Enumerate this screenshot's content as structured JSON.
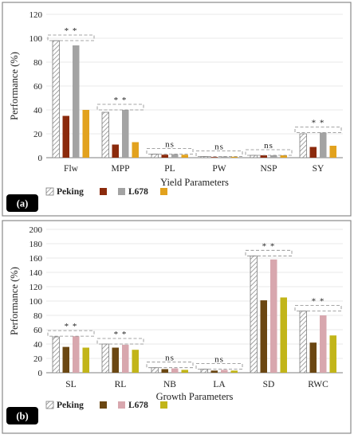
{
  "colors": {
    "hatch_stroke": "#7d7d7d",
    "a_dark": "#8b2a0c",
    "a_gray": "#a3a3a3",
    "a_gold": "#e2a21e",
    "b_brown": "#6b4712",
    "b_pink": "#d8a7ae",
    "b_olive": "#c2b519",
    "bar_outline": "#333333",
    "tag_bg": "#000000"
  },
  "chart_data": [
    {
      "panel_label": "(a)",
      "type": "bar",
      "ylabel": "Performance (%)",
      "xlabel": "Yield Parameters",
      "ylim": [
        0,
        120
      ],
      "yticks": [
        "0",
        "20",
        "40",
        "60",
        "80",
        "100",
        "120"
      ],
      "grid": true,
      "categories": [
        "Flw",
        "MPP",
        "PL",
        "PW",
        "NSP",
        "SY"
      ],
      "significance": [
        "* *",
        "* *",
        "ns",
        "ns",
        "ns",
        "* *"
      ],
      "legend": [
        "Peking",
        "",
        "L678",
        ""
      ],
      "series": [
        {
          "name": "Peking",
          "values": [
            98,
            38,
            3,
            1,
            2,
            20
          ]
        },
        {
          "values": [
            35,
            11,
            2.5,
            0.5,
            2,
            9
          ]
        },
        {
          "name": "L678",
          "values": [
            94,
            40,
            3,
            1,
            2,
            21
          ]
        },
        {
          "values": [
            40,
            13,
            2.5,
            0.8,
            2,
            10
          ]
        }
      ]
    },
    {
      "panel_label": "(b)",
      "type": "bar",
      "ylabel": "Performance (%)",
      "xlabel": "Growth Parameters",
      "ylim": [
        0,
        200
      ],
      "yticks": [
        "0",
        "20",
        "40",
        "60",
        "80",
        "100",
        "120",
        "140",
        "160",
        "180",
        "200"
      ],
      "grid": true,
      "categories": [
        "SL",
        "RL",
        "NB",
        "LA",
        "SD",
        "RWC"
      ],
      "significance": [
        "* *",
        "* *",
        "ns",
        "ns",
        "* *",
        "* *"
      ],
      "legend": [
        "Peking",
        "",
        "L678",
        ""
      ],
      "series": [
        {
          "name": "Peking",
          "values": [
            50,
            40,
            7,
            5,
            163,
            86
          ]
        },
        {
          "values": [
            36,
            35,
            5,
            3,
            101,
            42
          ]
        },
        {
          "name": "L678",
          "values": [
            51,
            39,
            6,
            4,
            158,
            80
          ]
        },
        {
          "values": [
            35,
            32,
            4,
            3,
            105,
            52
          ]
        }
      ]
    }
  ]
}
